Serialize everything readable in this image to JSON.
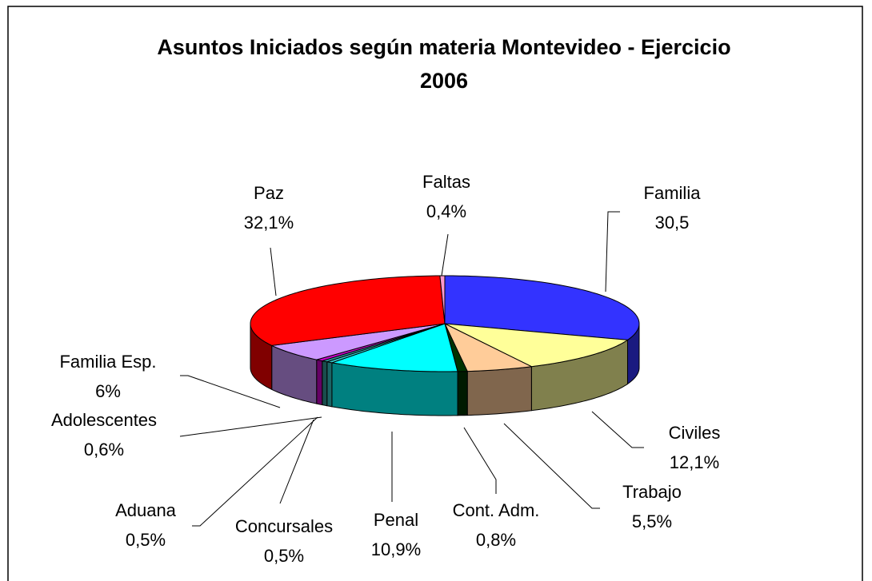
{
  "chart_data": {
    "type": "pie3d",
    "title": "Asuntos Iniciados según materia Montevideo - Ejercicio 2006",
    "categories": [
      "Familia",
      "Civiles",
      "Trabajo",
      "Cont. Adm.",
      "Penal",
      "Concursales",
      "Aduana",
      "Adolescentes",
      "Familia Esp.",
      "Paz",
      "Faltas"
    ],
    "values": [
      30.5,
      12.1,
      5.5,
      0.8,
      10.9,
      0.5,
      0.5,
      0.6,
      6,
      32.1,
      0.4
    ],
    "value_labels": [
      "30,5",
      "12,1%",
      "5,5%",
      "0,8%",
      "10,9%",
      "0,5%",
      "0,5%",
      "0,6%",
      "6%",
      "32,1%",
      "0,4%"
    ],
    "colors": [
      "#3333ff",
      "#ffff99",
      "#ffcc99",
      "#003300",
      "#00ffff",
      "#33cccc",
      "#339999",
      "#cc00cc",
      "#cc99ff",
      "#ff0000",
      "#ff99cc"
    ]
  }
}
